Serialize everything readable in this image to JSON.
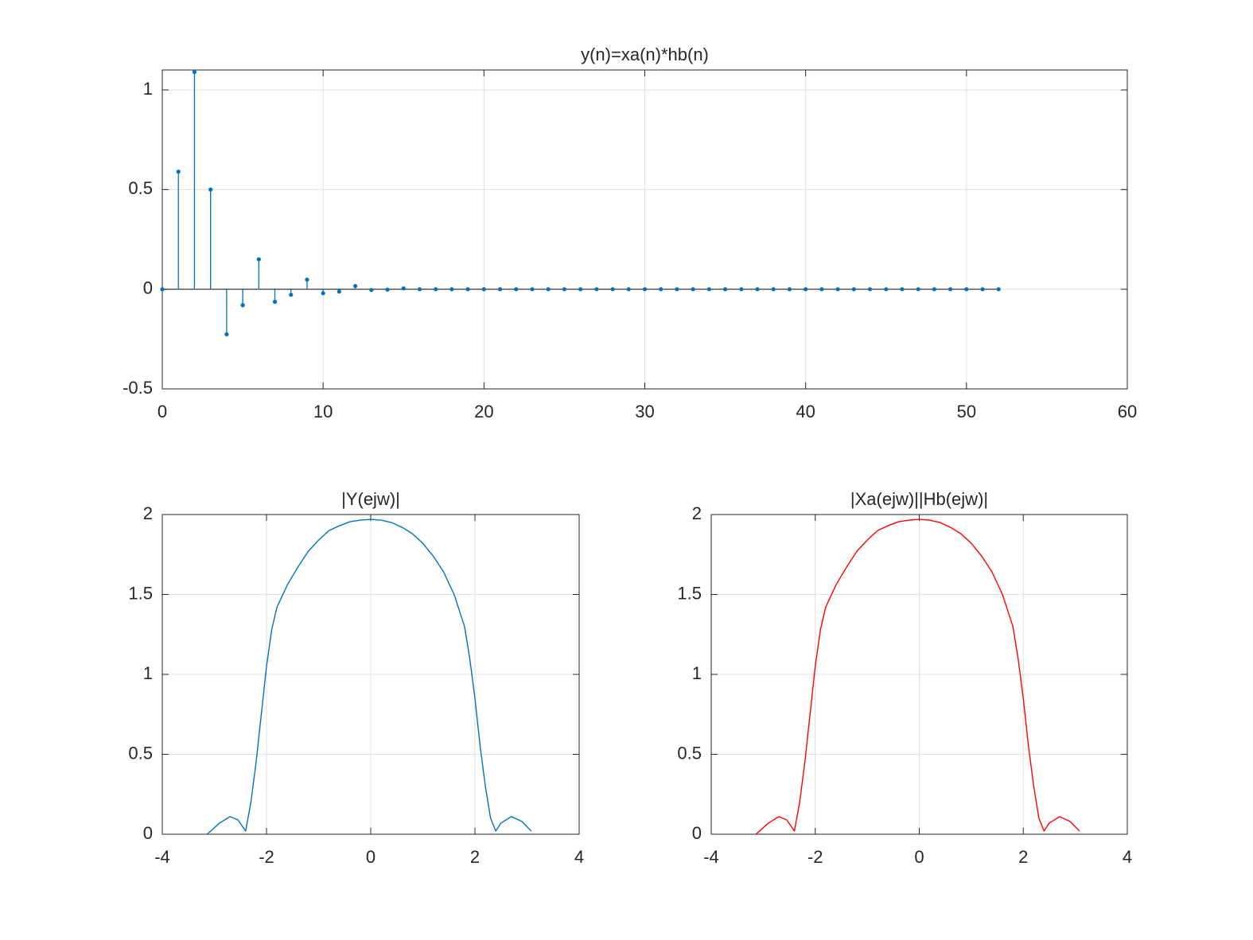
{
  "chart_data": [
    {
      "type": "stem",
      "title": "y(n)=xa(n)*hb(n)",
      "color": "#0072bd",
      "grid": true,
      "x": [
        0,
        1,
        2,
        3,
        4,
        5,
        6,
        7,
        8,
        9,
        10,
        11,
        12,
        13,
        14,
        15,
        16,
        17,
        18,
        19,
        20,
        21,
        22,
        23,
        24,
        25,
        26,
        27,
        28,
        29,
        30,
        31,
        32,
        33,
        34,
        35,
        36,
        37,
        38,
        39,
        40,
        41,
        42,
        43,
        44,
        45,
        46,
        47,
        48,
        49,
        50,
        51,
        52
      ],
      "values": [
        0,
        0.59,
        1.09,
        0.5,
        -0.226,
        -0.08,
        0.15,
        -0.063,
        -0.028,
        0.048,
        -0.02,
        -0.012,
        0.016,
        -0.004,
        -0.002,
        0.004,
        0,
        0,
        0,
        0,
        0,
        0,
        0,
        0,
        0,
        0,
        0,
        0,
        0,
        0,
        0,
        0,
        0,
        0,
        0,
        0,
        0,
        0,
        0,
        0,
        0,
        0,
        0,
        0,
        0,
        0,
        0,
        0,
        0,
        0,
        0,
        0,
        0
      ],
      "xlim": [
        0,
        60
      ],
      "xticks": [
        0,
        10,
        20,
        30,
        40,
        50,
        60
      ],
      "ylim": [
        -0.5,
        1.1
      ],
      "yticks": [
        -0.5,
        0,
        0.5,
        1
      ]
    },
    {
      "type": "line",
      "title": "|Y(ejw)|",
      "color": "#0072bd",
      "grid": true,
      "x": [
        -3.14,
        -2.9,
        -2.7,
        -2.55,
        -2.4,
        -2.3,
        -2.2,
        -2.1,
        -2.0,
        -1.9,
        -1.8,
        -1.6,
        -1.4,
        -1.2,
        -1.0,
        -0.8,
        -0.6,
        -0.4,
        -0.2,
        0,
        0.2,
        0.4,
        0.6,
        0.8,
        1.0,
        1.2,
        1.4,
        1.6,
        1.8,
        1.9,
        2.0,
        2.1,
        2.2,
        2.3,
        2.4,
        2.5,
        2.7,
        2.9,
        3.08
      ],
      "values": [
        0,
        0.07,
        0.11,
        0.09,
        0.02,
        0.2,
        0.45,
        0.75,
        1.05,
        1.28,
        1.42,
        1.56,
        1.67,
        1.77,
        1.84,
        1.9,
        1.93,
        1.955,
        1.965,
        1.97,
        1.965,
        1.95,
        1.92,
        1.88,
        1.82,
        1.74,
        1.64,
        1.5,
        1.3,
        1.1,
        0.85,
        0.55,
        0.3,
        0.1,
        0.02,
        0.07,
        0.11,
        0.08,
        0.02
      ],
      "xlim": [
        -4,
        4
      ],
      "xticks": [
        -4,
        -2,
        0,
        2,
        4
      ],
      "ylim": [
        0,
        2
      ],
      "yticks": [
        0,
        0.5,
        1,
        1.5,
        2
      ]
    },
    {
      "type": "line",
      "title": "|Xa(ejw)||Hb(ejw)|",
      "color": "#ff0000",
      "grid": true,
      "x": [
        -3.14,
        -2.9,
        -2.7,
        -2.55,
        -2.4,
        -2.3,
        -2.2,
        -2.1,
        -2.0,
        -1.9,
        -1.8,
        -1.6,
        -1.4,
        -1.2,
        -1.0,
        -0.8,
        -0.6,
        -0.4,
        -0.2,
        0,
        0.2,
        0.4,
        0.6,
        0.8,
        1.0,
        1.2,
        1.4,
        1.6,
        1.8,
        1.9,
        2.0,
        2.1,
        2.2,
        2.3,
        2.4,
        2.5,
        2.7,
        2.9,
        3.08
      ],
      "values": [
        0,
        0.07,
        0.11,
        0.09,
        0.02,
        0.2,
        0.45,
        0.75,
        1.05,
        1.28,
        1.42,
        1.56,
        1.67,
        1.77,
        1.84,
        1.9,
        1.93,
        1.955,
        1.965,
        1.97,
        1.965,
        1.95,
        1.92,
        1.88,
        1.82,
        1.74,
        1.64,
        1.5,
        1.3,
        1.1,
        0.85,
        0.55,
        0.3,
        0.1,
        0.02,
        0.07,
        0.11,
        0.08,
        0.02
      ],
      "xlim": [
        -4,
        4
      ],
      "xticks": [
        -4,
        -2,
        0,
        2,
        4
      ],
      "ylim": [
        0,
        2
      ],
      "yticks": [
        0,
        0.5,
        1,
        1.5,
        2
      ]
    }
  ]
}
